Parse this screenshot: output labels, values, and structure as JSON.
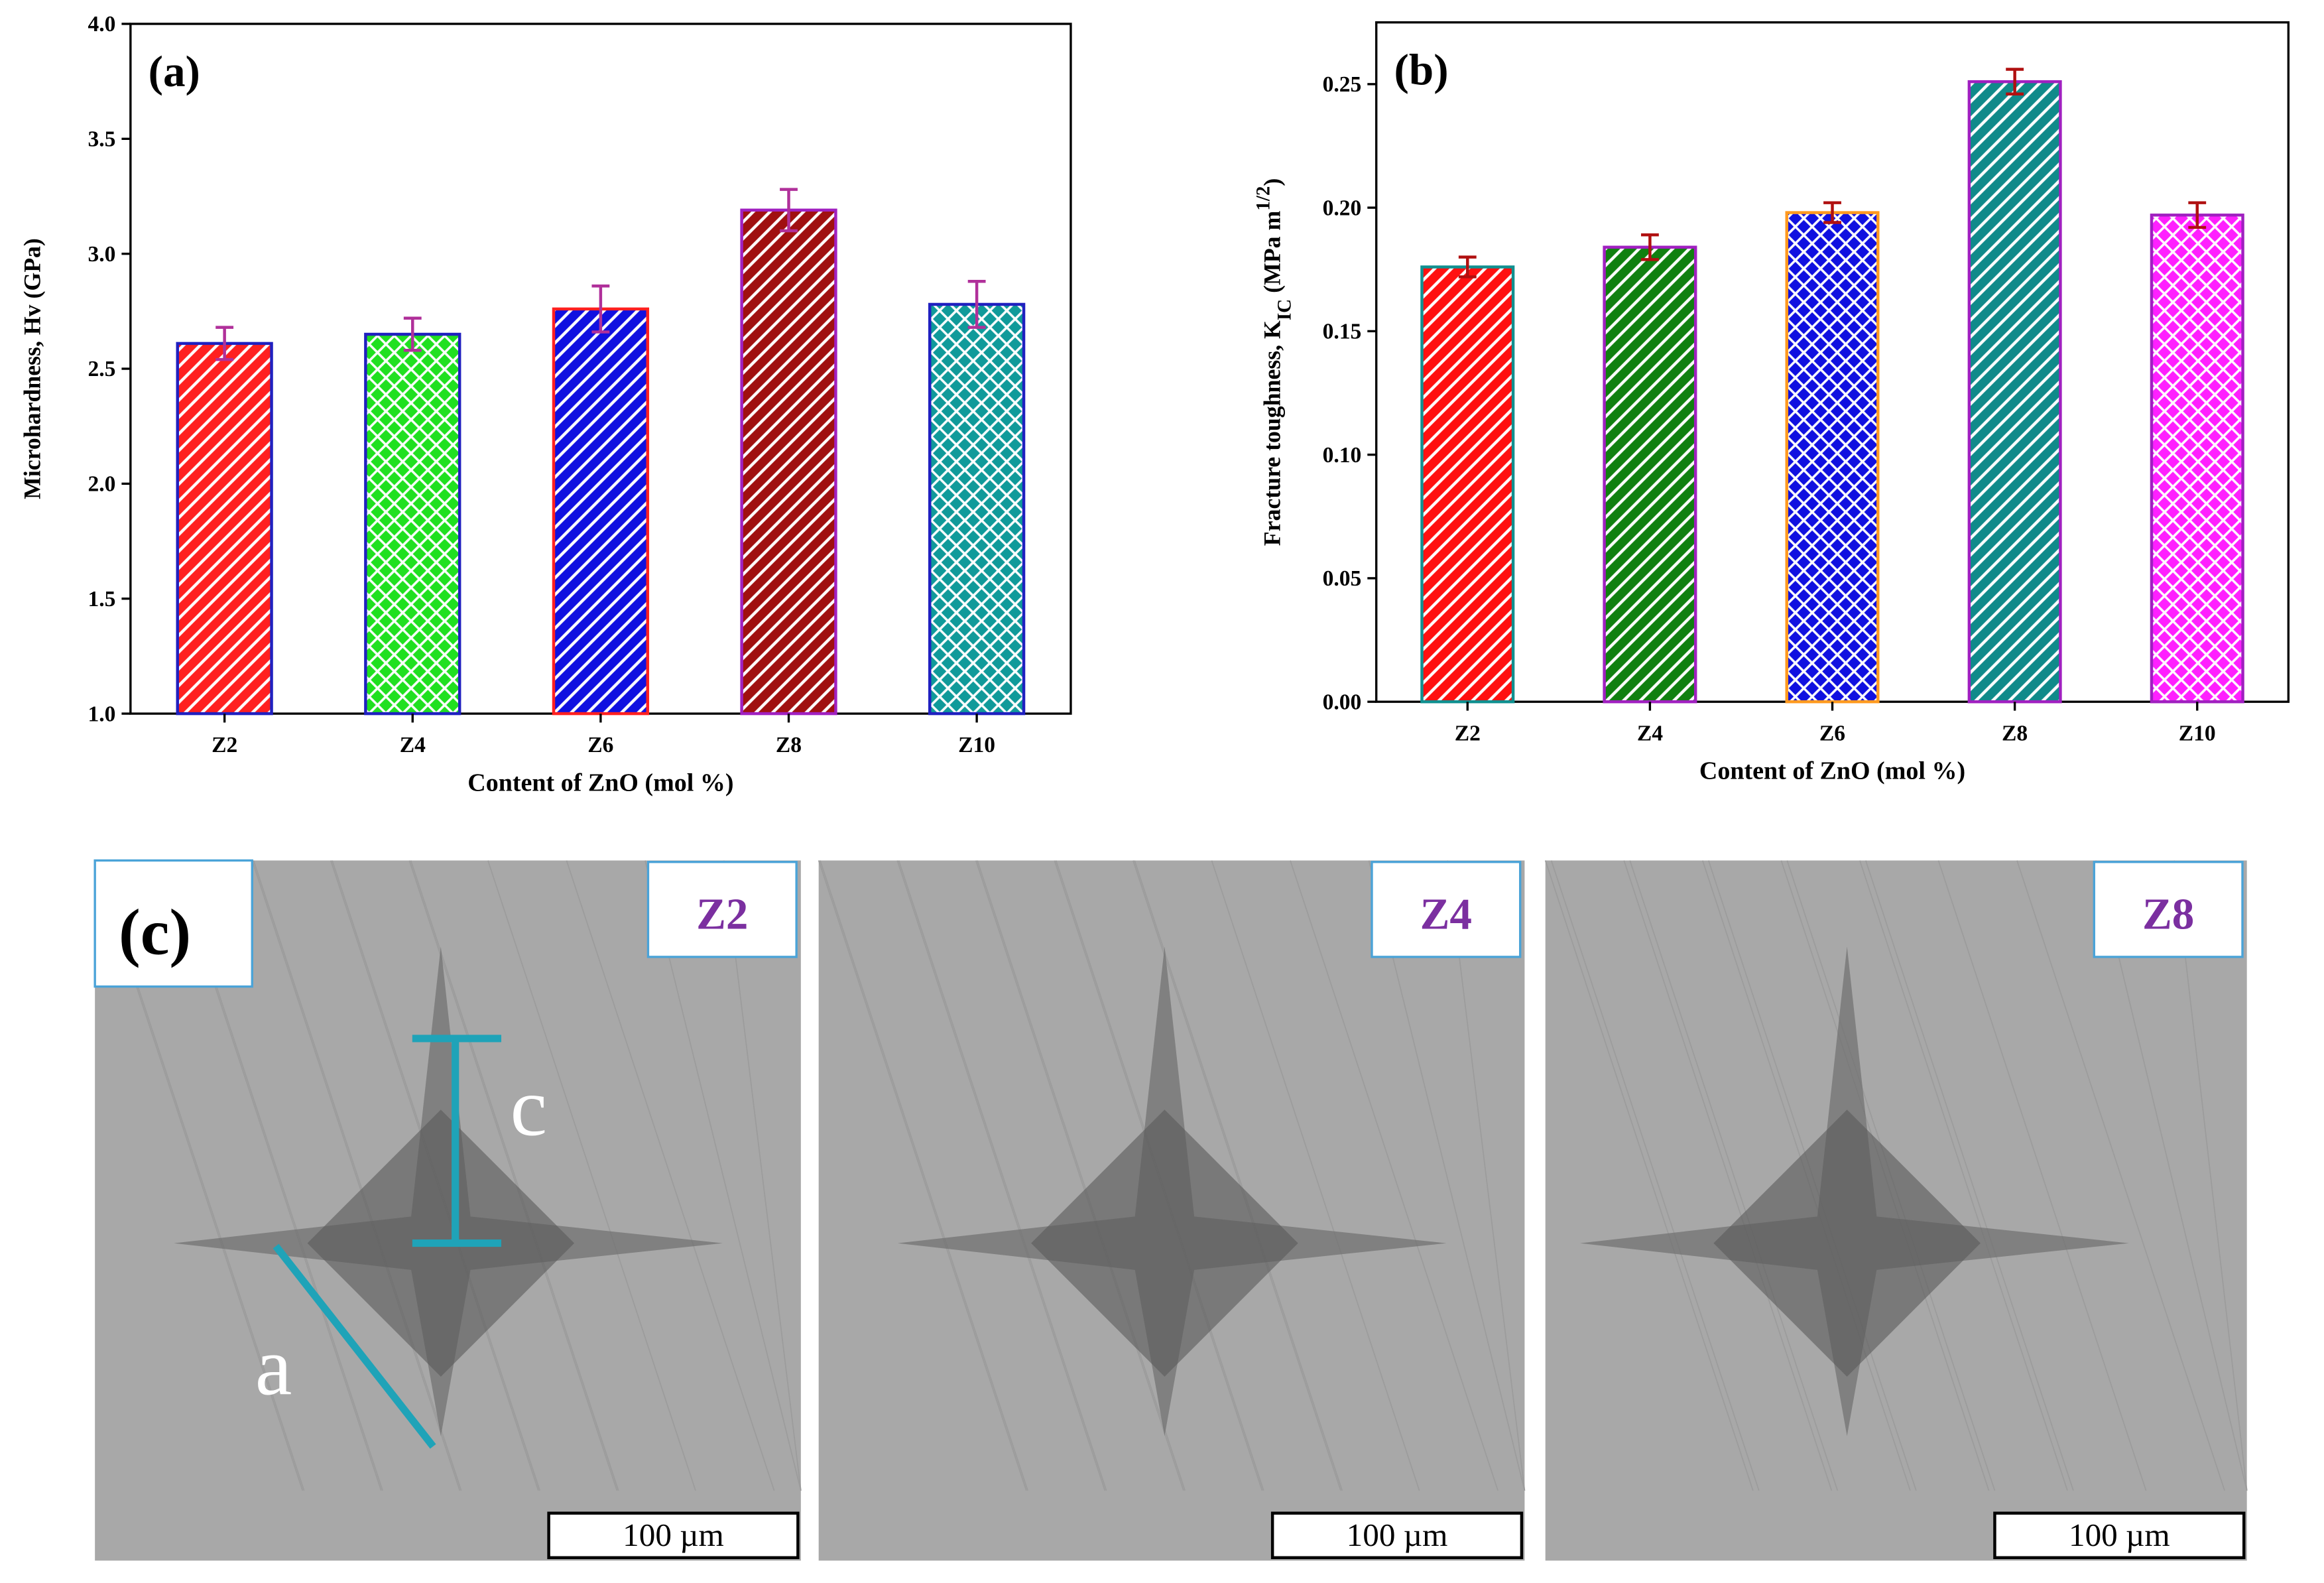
{
  "chart_data": [
    {
      "type": "bar",
      "label": "(a)",
      "x_label": "Content of  ZnO (mol %)",
      "y_label": [
        "Microhardness, Hv (GPa)"
      ],
      "categories": [
        "Z2",
        "Z4",
        "Z6",
        "Z8",
        "Z10"
      ],
      "values": [
        2.61,
        2.65,
        2.76,
        3.19,
        2.78
      ],
      "errors": [
        0.07,
        0.07,
        0.1,
        0.09,
        0.1
      ],
      "colors": [
        "#ff2020",
        "#20e020",
        "#1010e0",
        "#a01010",
        "#109a9a"
      ],
      "edge_colors": [
        "#2020c0",
        "#2020c0",
        "#ff2020",
        "#a020c0",
        "#2020c0"
      ],
      "patterns": [
        "stripe",
        "hatch",
        "stripe",
        "stripe",
        "hatch"
      ],
      "error_color": "#b0309a",
      "ylim": [
        1,
        4
      ],
      "yticks": [
        {
          "value": 1,
          "label": "1.0"
        },
        1.5,
        {
          "value": 2,
          "label": "2.0"
        },
        2.5,
        {
          "value": 3,
          "label": "3.0"
        },
        3.5,
        {
          "value": 4,
          "label": "4.0"
        }
      ]
    },
    {
      "type": "bar",
      "label": "(b)",
      "x_label": "Content of  ZnO (mol %)",
      "y_label": [
        "Fracture toughness, K",
        "IC",
        " (MPa m",
        "1/2",
        ")"
      ],
      "categories": [
        "Z2",
        "Z4",
        "Z6",
        "Z8",
        "Z10"
      ],
      "values": [
        0.176,
        0.184,
        0.198,
        0.251,
        0.197
      ],
      "errors": [
        0.004,
        0.005,
        0.004,
        0.005,
        0.005
      ],
      "colors": [
        "#ff1010",
        "#108010",
        "#1010e0",
        "#108a8a",
        "#ff20ff"
      ],
      "edge_colors": [
        "#109090",
        "#a020c0",
        "#ff9a20",
        "#a020c0",
        "#a020c0"
      ],
      "patterns": [
        "stripe",
        "stripe",
        "hatch",
        "stripe",
        "hatch"
      ],
      "error_color": "#b01010",
      "ylim": [
        0,
        0.275
      ],
      "yticks": [
        {
          "value": 0,
          "label": "0.00"
        },
        0.05,
        {
          "value": 0.1,
          "label": "0.10"
        },
        0.15,
        {
          "value": 0.2,
          "label": "0.20"
        },
        0.25
      ]
    }
  ],
  "micrographs": {
    "label": "(c)",
    "panels": [
      {
        "label": "Z2",
        "scale_bar": "100 µm"
      },
      {
        "label": "Z4",
        "scale_bar": "100 µm"
      },
      {
        "label": "Z8",
        "scale_bar": "100 µm"
      }
    ],
    "crack_length": "c",
    "indent_half_diagonal": "a"
  }
}
